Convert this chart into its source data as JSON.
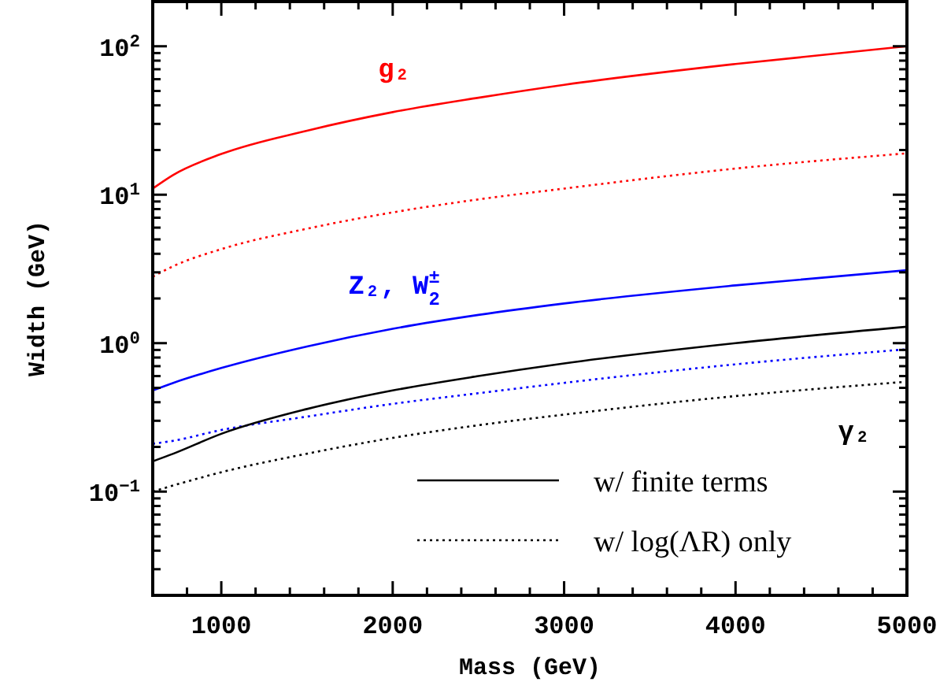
{
  "chart_data": {
    "type": "line",
    "xlabel": "Mass (GeV)",
    "ylabel": "Width (GeV)",
    "log": "y",
    "grid": false,
    "xlim": [
      600,
      5000
    ],
    "ylim": [
      0.02,
      200
    ],
    "xticks": [
      {
        "value": 600,
        "label": null
      },
      {
        "value": 800,
        "label": null
      },
      1000,
      {
        "value": 1200,
        "label": null
      },
      {
        "value": 1400,
        "label": null
      },
      {
        "value": 1600,
        "label": null
      },
      {
        "value": 1800,
        "label": null
      },
      2000,
      {
        "value": 2200,
        "label": null
      },
      {
        "value": 2400,
        "label": null
      },
      {
        "value": 2600,
        "label": null
      },
      {
        "value": 2800,
        "label": null
      },
      3000,
      {
        "value": 3200,
        "label": null
      },
      {
        "value": 3400,
        "label": null
      },
      {
        "value": 3600,
        "label": null
      },
      {
        "value": 3800,
        "label": null
      },
      4000,
      {
        "value": 4200,
        "label": null
      },
      {
        "value": 4400,
        "label": null
      },
      {
        "value": 4600,
        "label": null
      },
      {
        "value": 4800,
        "label": null
      },
      5000
    ],
    "yticks": [
      {
        "value": 0.02,
        "label": null
      },
      {
        "value": 0.03,
        "label": null
      },
      {
        "value": 0.04,
        "label": null
      },
      {
        "value": 0.05,
        "label": null
      },
      {
        "value": 0.06,
        "label": null
      },
      {
        "value": 0.07,
        "label": null
      },
      {
        "value": 0.08,
        "label": null
      },
      {
        "value": 0.09,
        "label": null
      },
      {
        "value": 0.1,
        "label": "10$^{−1}$"
      },
      {
        "value": 0.2,
        "label": null
      },
      {
        "value": 0.3,
        "label": null
      },
      {
        "value": 0.4,
        "label": null
      },
      {
        "value": 0.5,
        "label": null
      },
      {
        "value": 0.6,
        "label": null
      },
      {
        "value": 0.7,
        "label": null
      },
      {
        "value": 0.8,
        "label": null
      },
      {
        "value": 0.9,
        "label": null
      },
      {
        "value": 1,
        "label": "10$^{0}$"
      },
      {
        "value": 2,
        "label": null
      },
      {
        "value": 3,
        "label": null
      },
      {
        "value": 4,
        "label": null
      },
      {
        "value": 5,
        "label": null
      },
      {
        "value": 6,
        "label": null
      },
      {
        "value": 7,
        "label": null
      },
      {
        "value": 8,
        "label": null
      },
      {
        "value": 9,
        "label": null
      },
      {
        "value": 10,
        "label": "10$^{1}$"
      },
      {
        "value": 20,
        "label": null
      },
      {
        "value": 30,
        "label": null
      },
      {
        "value": 40,
        "label": null
      },
      {
        "value": 50,
        "label": null
      },
      {
        "value": 60,
        "label": null
      },
      {
        "value": 70,
        "label": null
      },
      {
        "value": 80,
        "label": null
      },
      {
        "value": 90,
        "label": null
      },
      {
        "value": 100,
        "label": "10$^{2}$"
      },
      {
        "value": 200,
        "label": null
      }
    ],
    "x": [
      600,
      720,
      1000,
      1500,
      2000,
      2500,
      3000,
      4000,
      5000
    ],
    "series": [
      {
        "name": "g₂",
        "color": "#ff0000",
        "line_style": "solid",
        "values": [
          11,
          13.6,
          18.8,
          27,
          36,
          45,
          55,
          76,
          100
        ]
      },
      {
        "color": "#ff0000",
        "line_style": "dotted",
        "values": [
          2.8,
          3.3,
          4.3,
          5.9,
          7.6,
          9.3,
          11,
          15,
          19
        ]
      },
      {
        "name": "Z₂, W$_{2}$$^{±}$",
        "color": "#0000ff",
        "line_style": "solid",
        "values": [
          0.48,
          0.54,
          0.68,
          0.95,
          1.25,
          1.55,
          1.85,
          2.45,
          3.1
        ]
      },
      {
        "color": "#0000ff",
        "line_style": "dotted",
        "values": [
          0.21,
          0.22,
          0.26,
          0.32,
          0.39,
          0.46,
          0.54,
          0.72,
          0.91
        ]
      },
      {
        "name": "γ₂",
        "color": "#000000",
        "line_style": "solid",
        "values": [
          0.16,
          0.18,
          0.245,
          0.36,
          0.48,
          0.6,
          0.73,
          1.0,
          1.29
        ]
      },
      {
        "color": "#000000",
        "line_style": "dotted",
        "values": [
          0.1,
          0.11,
          0.135,
          0.18,
          0.23,
          0.28,
          0.33,
          0.44,
          0.55
        ]
      }
    ],
    "annotations": [
      "w/ finite terms",
      "w/ log(ΛR) only"
    ]
  }
}
